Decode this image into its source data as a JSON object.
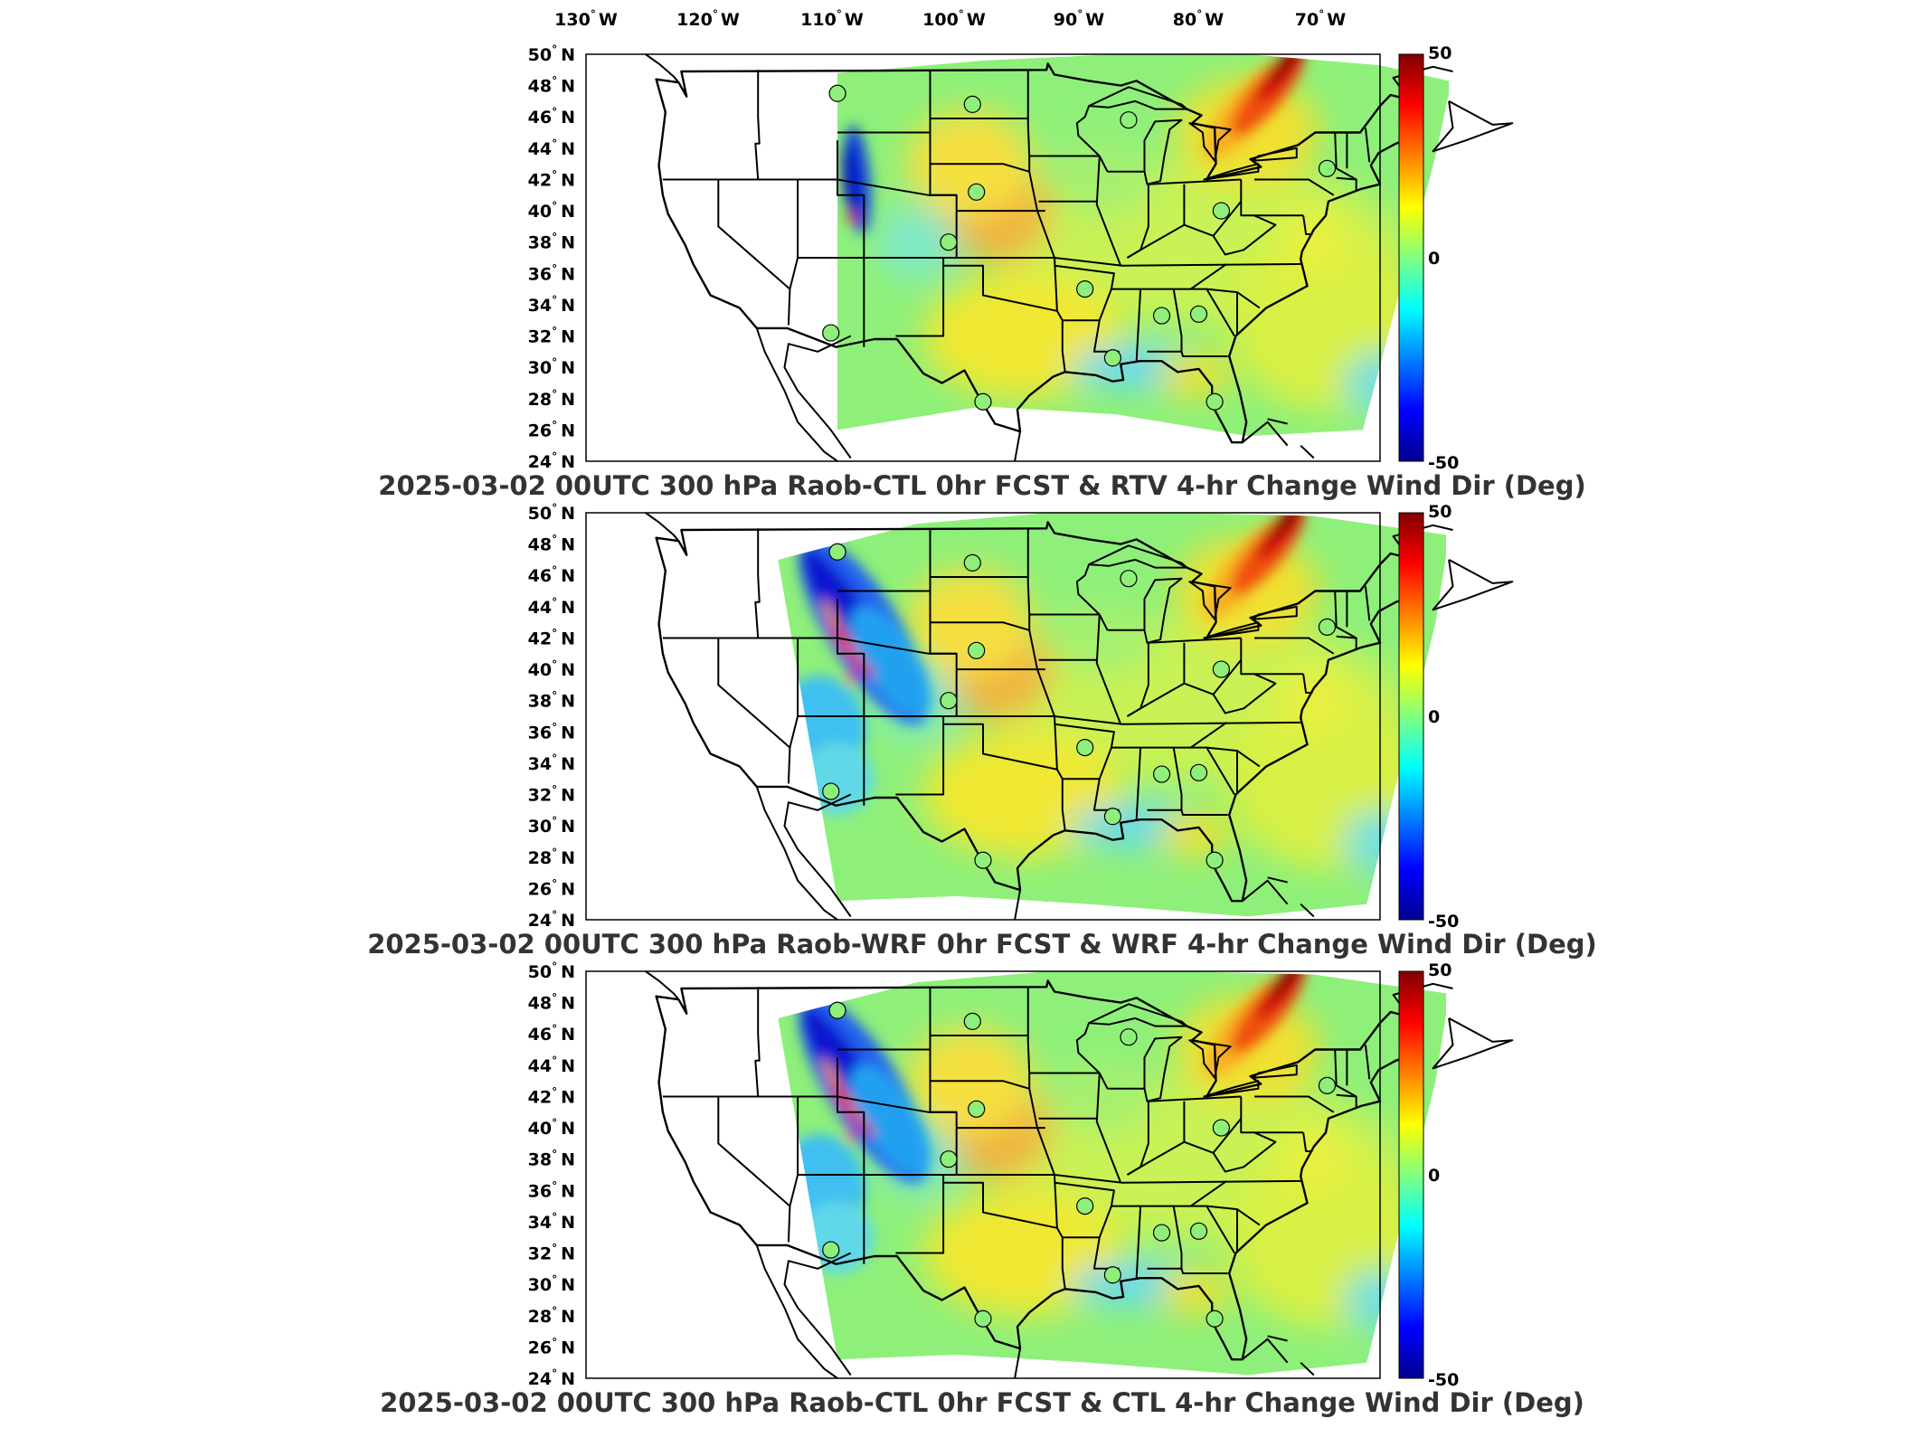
{
  "figure": {
    "lon_labels": [
      {
        "deg": "130",
        "hemi": "W"
      },
      {
        "deg": "120",
        "hemi": "W"
      },
      {
        "deg": "110",
        "hemi": "W"
      },
      {
        "deg": "100",
        "hemi": "W"
      },
      {
        "deg": "90",
        "hemi": "W"
      },
      {
        "deg": "80",
        "hemi": "W"
      },
      {
        "deg": "70",
        "hemi": "W"
      }
    ],
    "lat_labels": [
      {
        "deg": "50",
        "hemi": "N"
      },
      {
        "deg": "48",
        "hemi": "N"
      },
      {
        "deg": "46",
        "hemi": "N"
      },
      {
        "deg": "44",
        "hemi": "N"
      },
      {
        "deg": "42",
        "hemi": "N"
      },
      {
        "deg": "40",
        "hemi": "N"
      },
      {
        "deg": "38",
        "hemi": "N"
      },
      {
        "deg": "36",
        "hemi": "N"
      },
      {
        "deg": "34",
        "hemi": "N"
      },
      {
        "deg": "32",
        "hemi": "N"
      },
      {
        "deg": "30",
        "hemi": "N"
      },
      {
        "deg": "28",
        "hemi": "N"
      },
      {
        "deg": "26",
        "hemi": "N"
      },
      {
        "deg": "24",
        "hemi": "N"
      }
    ],
    "colorbar": {
      "ticks": [
        "50",
        "0",
        "-50"
      ],
      "range": [
        -50,
        50
      ],
      "colormap": [
        "#00008f",
        "#0000ff",
        "#0080ff",
        "#00ffff",
        "#80ff80",
        "#ffff00",
        "#ff8000",
        "#ff0000",
        "#800000"
      ]
    },
    "panels": [
      {
        "title": "2025-03-02 00UTC 300 hPa Raob-CTL 0hr FCST & RTV 4-hr Change Wind Dir (Deg)",
        "variant": "rtv"
      },
      {
        "title": "2025-03-02 00UTC 300 hPa Raob-WRF 0hr FCST & WRF 4-hr Change Wind Dir (Deg)",
        "variant": "wrf"
      },
      {
        "title": "2025-03-02 00UTC 300 hPa Raob-CTL 0hr FCST & CTL 4-hr Change Wind Dir (Deg)",
        "variant": "ctl"
      }
    ],
    "raob_stations": [
      {
        "lon": -111.0,
        "lat": 47.5
      },
      {
        "lon": -100.8,
        "lat": 46.8
      },
      {
        "lon": -89.0,
        "lat": 45.8
      },
      {
        "lon": -74.0,
        "lat": 42.7
      },
      {
        "lon": -100.5,
        "lat": 41.2
      },
      {
        "lon": -82.0,
        "lat": 40.0
      },
      {
        "lon": -102.6,
        "lat": 38.0
      },
      {
        "lon": -92.3,
        "lat": 35.0
      },
      {
        "lon": -86.5,
        "lat": 33.3
      },
      {
        "lon": -83.7,
        "lat": 33.4
      },
      {
        "lon": -111.5,
        "lat": 32.2
      },
      {
        "lon": -90.2,
        "lat": 30.6
      },
      {
        "lon": -100.0,
        "lat": 27.8
      },
      {
        "lon": -82.5,
        "lat": 27.8
      }
    ]
  }
}
